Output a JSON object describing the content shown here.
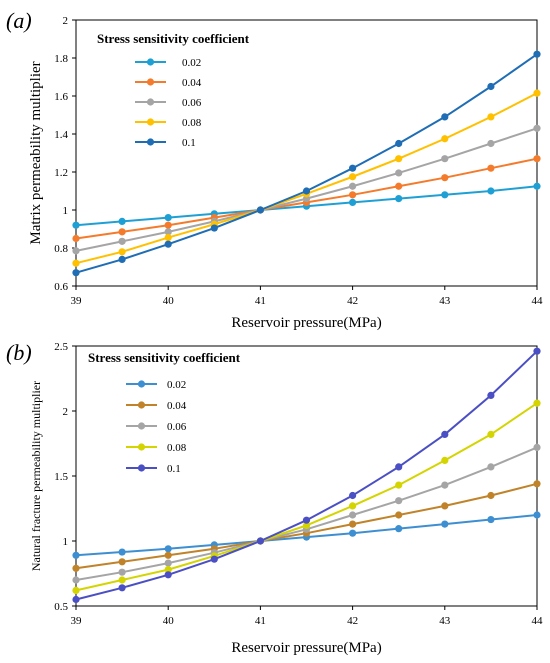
{
  "chart_data": [
    {
      "type": "line",
      "panel_label": "(a)",
      "xlabel": "Reservoir pressure(MPa)",
      "ylabel": "Matrix permeability multiplier",
      "legend_title": "Stress sensitivity coefficient",
      "legend_position": "top-left",
      "xlim": [
        39,
        44
      ],
      "ylim": [
        0.6,
        2.0
      ],
      "x_ticks": [
        "39",
        "40",
        "41",
        "42",
        "43",
        "44"
      ],
      "y_ticks": [
        "0.6",
        "0.8",
        "1",
        "1.2",
        "1.4",
        "1.6",
        "1.8",
        "2"
      ],
      "grid": false,
      "x": [
        39,
        39.5,
        40,
        40.5,
        41,
        41.5,
        42,
        42.5,
        43,
        43.5,
        44
      ],
      "series": [
        {
          "name": "0.02",
          "color": "#1fa0d4",
          "values": [
            0.92,
            0.94,
            0.96,
            0.98,
            1.0,
            1.02,
            1.04,
            1.06,
            1.08,
            1.1,
            1.125
          ]
        },
        {
          "name": "0.04",
          "color": "#f47b2b",
          "values": [
            0.85,
            0.885,
            0.92,
            0.96,
            1.0,
            1.04,
            1.08,
            1.125,
            1.17,
            1.22,
            1.27
          ]
        },
        {
          "name": "0.06",
          "color": "#a5a5a5",
          "values": [
            0.785,
            0.835,
            0.885,
            0.94,
            1.0,
            1.06,
            1.125,
            1.195,
            1.27,
            1.35,
            1.43
          ]
        },
        {
          "name": "0.08",
          "color": "#ffc000",
          "values": [
            0.72,
            0.78,
            0.855,
            0.925,
            1.0,
            1.085,
            1.175,
            1.27,
            1.375,
            1.49,
            1.615
          ]
        },
        {
          "name": "0.1",
          "color": "#1f6db5",
          "values": [
            0.67,
            0.74,
            0.82,
            0.905,
            1.0,
            1.1,
            1.22,
            1.35,
            1.49,
            1.65,
            1.82
          ]
        }
      ]
    },
    {
      "type": "line",
      "panel_label": "(b)",
      "xlabel": "Reservoir pressure(MPa)",
      "ylabel": "Natural fracture permeability multiplier",
      "legend_title": "Stress sensitivity coefficient",
      "legend_position": "top-left",
      "xlim": [
        39,
        44
      ],
      "ylim": [
        0.5,
        2.5
      ],
      "x_ticks": [
        "39",
        "40",
        "41",
        "42",
        "43",
        "44"
      ],
      "y_ticks": [
        "0.5",
        "1",
        "1.5",
        "2",
        "2.5"
      ],
      "grid": false,
      "x": [
        39,
        39.5,
        40,
        40.5,
        41,
        41.5,
        42,
        42.5,
        43,
        43.5,
        44
      ],
      "series": [
        {
          "name": "0.02",
          "color": "#3d8fd1",
          "values": [
            0.89,
            0.915,
            0.94,
            0.97,
            1.0,
            1.03,
            1.06,
            1.095,
            1.13,
            1.165,
            1.2
          ]
        },
        {
          "name": "0.04",
          "color": "#c0832a",
          "values": [
            0.79,
            0.84,
            0.89,
            0.94,
            1.0,
            1.06,
            1.13,
            1.2,
            1.27,
            1.35,
            1.44
          ]
        },
        {
          "name": "0.06",
          "color": "#a5a5a5",
          "values": [
            0.7,
            0.76,
            0.83,
            0.91,
            1.0,
            1.09,
            1.2,
            1.31,
            1.43,
            1.57,
            1.72
          ]
        },
        {
          "name": "0.08",
          "color": "#d4d400",
          "values": [
            0.62,
            0.7,
            0.78,
            0.885,
            1.0,
            1.12,
            1.27,
            1.43,
            1.62,
            1.82,
            2.06
          ]
        },
        {
          "name": "0.1",
          "color": "#4b4fc4",
          "values": [
            0.55,
            0.64,
            0.74,
            0.86,
            1.0,
            1.16,
            1.35,
            1.57,
            1.82,
            2.12,
            2.46
          ]
        }
      ]
    }
  ]
}
